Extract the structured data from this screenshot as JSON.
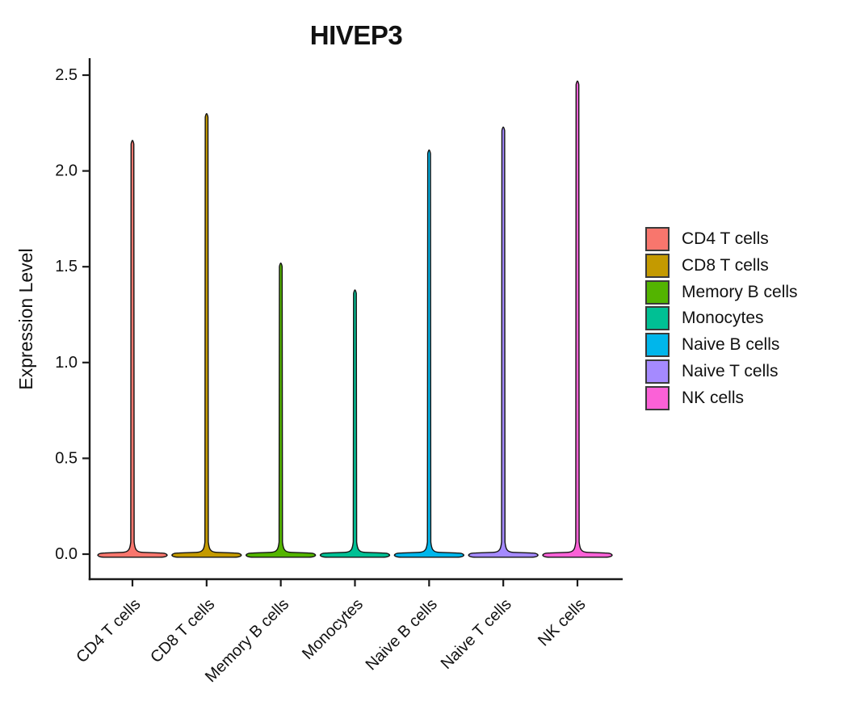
{
  "window": {
    "background_color": "#ffffff"
  },
  "chart_data": {
    "type": "violin",
    "title": "HIVEP3",
    "ylabel": "Expression Level",
    "xlabel": "",
    "ylim": [
      0,
      2.5
    ],
    "ytick_labels": [
      "0.0",
      "0.5",
      "1.0",
      "1.5",
      "2.0",
      "2.5"
    ],
    "grid": false,
    "legend_position": "right",
    "categories": [
      "CD4 T cells",
      "CD8 T cells",
      "Memory B cells",
      "Monocytes",
      "Naive B cells",
      "Naive T cells",
      "NK cells"
    ],
    "series": [
      {
        "name": "CD4 T cells",
        "color": "#F8766D",
        "baseline_value": 0.0,
        "max_expression": 2.17
      },
      {
        "name": "CD8 T cells",
        "color": "#C49A00",
        "baseline_value": 0.0,
        "max_expression": 2.31
      },
      {
        "name": "Memory B cells",
        "color": "#53B400",
        "baseline_value": 0.0,
        "max_expression": 1.53
      },
      {
        "name": "Monocytes",
        "color": "#00C094",
        "baseline_value": 0.0,
        "max_expression": 1.39
      },
      {
        "name": "Naive B cells",
        "color": "#00B6EB",
        "baseline_value": 0.0,
        "max_expression": 2.12
      },
      {
        "name": "Naive T cells",
        "color": "#A58AFF",
        "baseline_value": 0.0,
        "max_expression": 2.24
      },
      {
        "name": "NK cells",
        "color": "#FB61D7",
        "baseline_value": 0.0,
        "max_expression": 2.48
      }
    ],
    "shape_note": "distribution mass concentrated at 0 with a thin spike reaching max_expression",
    "axis_color": "#1a1a1a",
    "violin_outline_color": "#141414"
  }
}
